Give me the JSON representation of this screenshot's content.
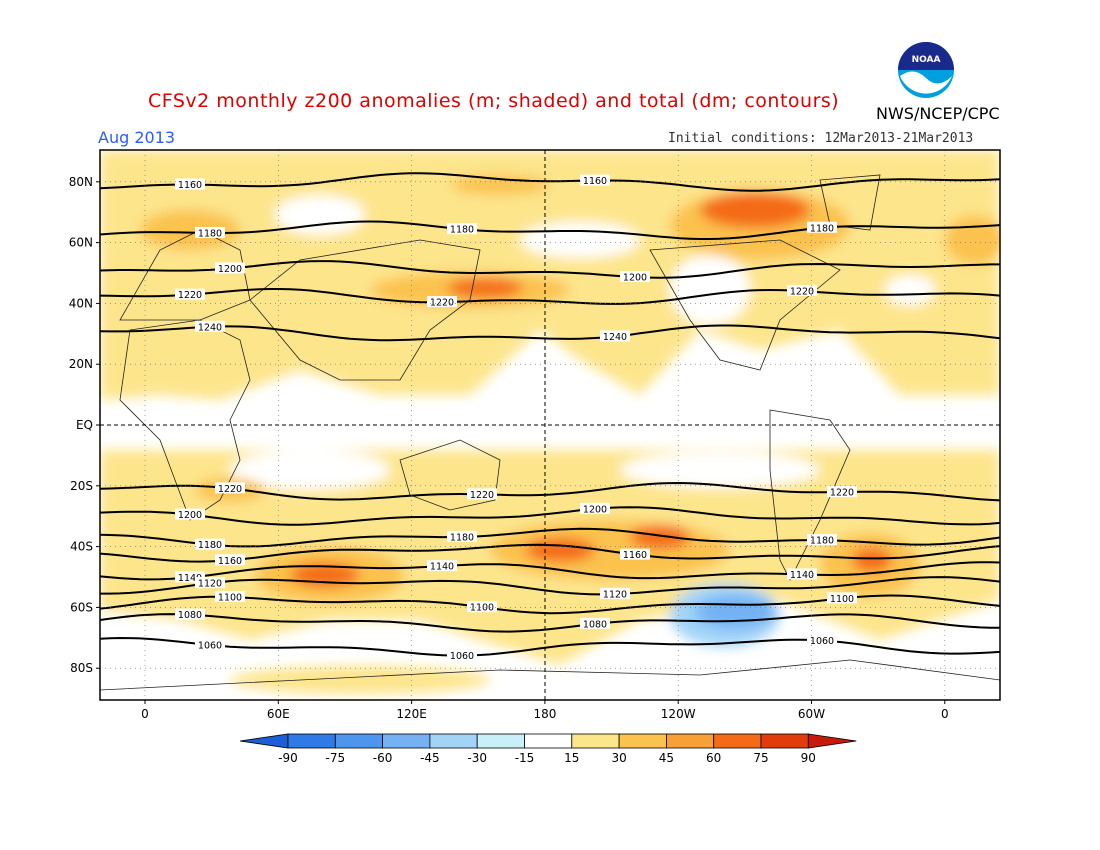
{
  "header": {
    "title": "CFSv2 monthly z200 anomalies (m; shaded) and total (dm; contours)",
    "agency": "NWS/NCEP/CPC",
    "month": "Aug 2013",
    "initial_conditions": "Initial conditions: 12Mar2013-21Mar2013",
    "logo_text": "NOAA"
  },
  "map": {
    "lat_labels": [
      "80N",
      "60N",
      "40N",
      "20N",
      "EQ",
      "20S",
      "40S",
      "60S",
      "80S"
    ],
    "lon_labels": [
      "0",
      "60E",
      "120E",
      "180",
      "120W",
      "60W",
      "0"
    ]
  },
  "contours": [
    {
      "label": "1160",
      "lat": 80
    },
    {
      "label": "1180",
      "lat": 64
    },
    {
      "label": "1200",
      "lat": 51
    },
    {
      "label": "1220",
      "lat": 42
    },
    {
      "label": "1240",
      "lat": 30
    },
    {
      "label": "1220",
      "lat": -22
    },
    {
      "label": "1200",
      "lat": -30
    },
    {
      "label": "1180",
      "lat": -37
    },
    {
      "label": "1160",
      "lat": -42
    },
    {
      "label": "1140",
      "lat": -48
    },
    {
      "label": "1120",
      "lat": -53
    },
    {
      "label": "1100",
      "lat": -59
    },
    {
      "label": "1080",
      "lat": -65
    },
    {
      "label": "1060",
      "lat": -73
    }
  ],
  "colorbar": {
    "labels": [
      "-90",
      "-75",
      "-60",
      "-45",
      "-30",
      "-15",
      "15",
      "30",
      "45",
      "60",
      "75",
      "90"
    ],
    "colors": [
      "#1a5fd6",
      "#2f7ae6",
      "#4e95ee",
      "#74b2f4",
      "#a2d4f8",
      "#c8f0f8",
      "#ffffff",
      "#fde58c",
      "#fbc24e",
      "#f7a038",
      "#f46a16",
      "#e23c0c",
      "#c81a0a"
    ]
  },
  "colors": {
    "title": "#e00000",
    "month": "#2a5cff",
    "anomaly_weak": "#fde58c",
    "anomaly_moderate": "#fbc24e",
    "anomaly_strong": "#f46a16",
    "anomaly_negative": "#a2d4f8"
  }
}
